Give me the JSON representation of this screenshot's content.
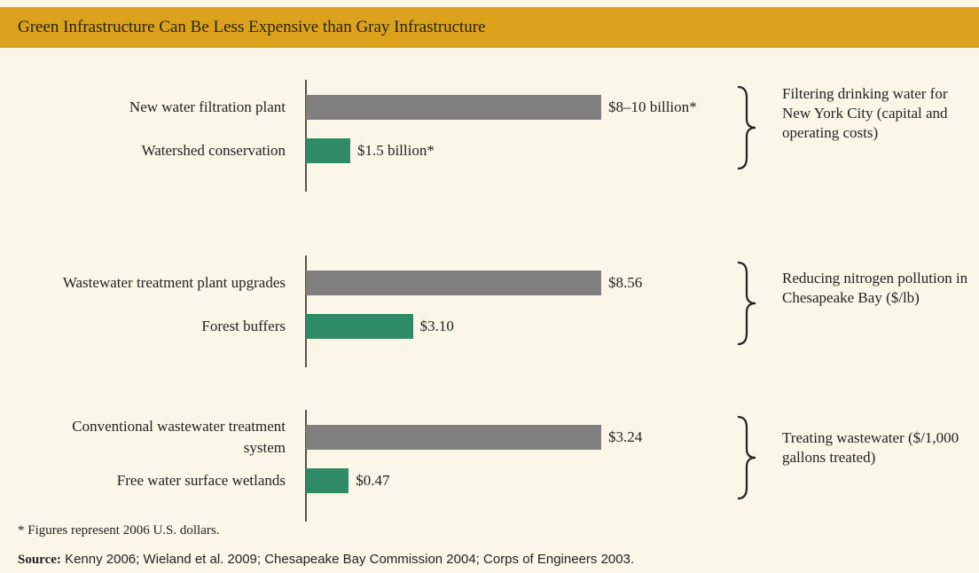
{
  "title": "Green Infrastructure Can Be Less Expensive than Gray Infrastructure",
  "chart_data": [
    {
      "type": "bar",
      "orientation": "horizontal",
      "categories": [
        "New water filtration plant",
        "Watershed conservation"
      ],
      "values": [
        10,
        1.5
      ],
      "value_labels": [
        "$8–10 billion*",
        "$1.5 billion*"
      ],
      "xlim": [
        0,
        10
      ],
      "colors": [
        "#7f7f7f",
        "#2e8b66"
      ],
      "annotation": "Filtering drinking water for New York City (capital and operating costs)"
    },
    {
      "type": "bar",
      "orientation": "horizontal",
      "categories": [
        "Wastewater treatment plant upgrades",
        "Forest buffers"
      ],
      "values": [
        8.56,
        3.1
      ],
      "value_labels": [
        "$8.56",
        "$3.10"
      ],
      "xlim": [
        0,
        8.56
      ],
      "colors": [
        "#7f7f7f",
        "#2e8b66"
      ],
      "annotation": "Reducing nitrogen pollution in Chesapeake Bay ($/lb)"
    },
    {
      "type": "bar",
      "orientation": "horizontal",
      "categories": [
        "Conventional wastewater treatment system",
        "Free water surface wetlands"
      ],
      "values": [
        3.24,
        0.47
      ],
      "value_labels": [
        "$3.24",
        "$0.47"
      ],
      "xlim": [
        0,
        3.24
      ],
      "colors": [
        "#7f7f7f",
        "#2e8b66"
      ],
      "annotation": "Treating wastewater ($/1,000 gallons treated)"
    }
  ],
  "footnote": "* Figures represent 2006 U.S. dollars.",
  "source_label": "Source:",
  "source": "Kenny 2006; Wieland et al. 2009; Chesapeake Bay Commission 2004; Corps of Engineers 2003."
}
